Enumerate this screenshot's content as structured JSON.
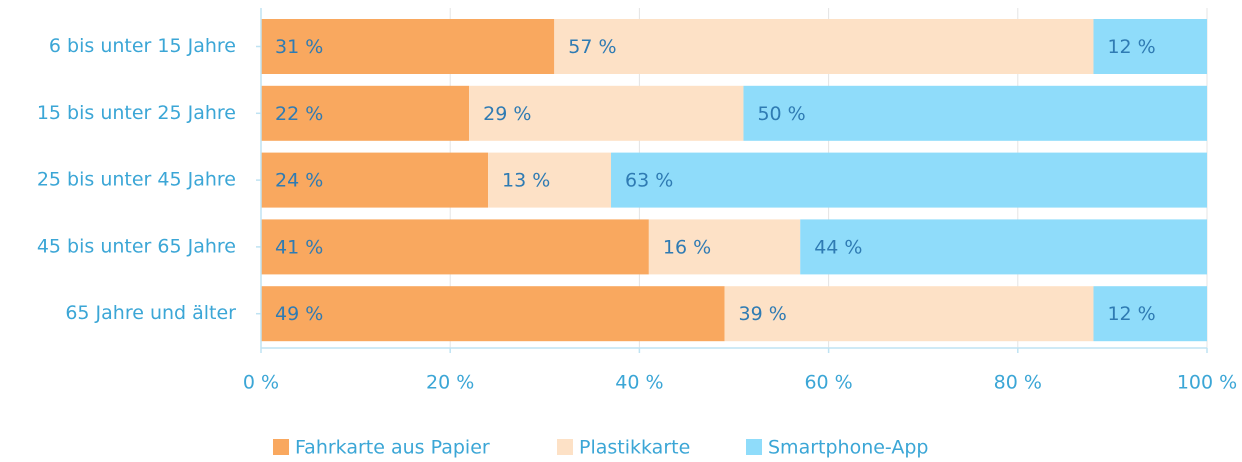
{
  "chart_data": {
    "type": "stacked_barh",
    "categories": [
      "6 bis unter 15 Jahre",
      "15 bis unter 25 Jahre",
      "25 bis unter 45 Jahre",
      "45 bis unter 65 Jahre",
      "65 Jahre und älter"
    ],
    "series": [
      {
        "name": "Fahrkarte aus Papier",
        "color": "#f9a85f",
        "values": [
          31,
          22,
          24,
          41,
          49
        ],
        "value_labels": [
          "31 %",
          "22 %",
          "24 %",
          "41 %",
          "49 %"
        ]
      },
      {
        "name": "Plastikkarte",
        "color": "#fde1c6",
        "values": [
          57,
          29,
          13,
          16,
          39
        ],
        "value_labels": [
          "57 %",
          "29 %",
          "13 %",
          "16 %",
          "39 %"
        ]
      },
      {
        "name": "Smartphone-App",
        "color": "#8fdcfa",
        "values": [
          12,
          50,
          63,
          44,
          12
        ],
        "value_labels": [
          "12 %",
          "50 %",
          "63 %",
          "44 %",
          "12 %"
        ]
      }
    ],
    "xlim": [
      0,
      100
    ],
    "xticks": [
      {
        "value": 0,
        "label": "0 %"
      },
      {
        "value": 20,
        "label": "20 %"
      },
      {
        "value": 40,
        "label": "40 %"
      },
      {
        "value": 60,
        "label": "60 %"
      },
      {
        "value": 80,
        "label": "80 %"
      },
      {
        "value": 100,
        "label": "100 %"
      }
    ],
    "grid": true,
    "legend": "bottom"
  }
}
